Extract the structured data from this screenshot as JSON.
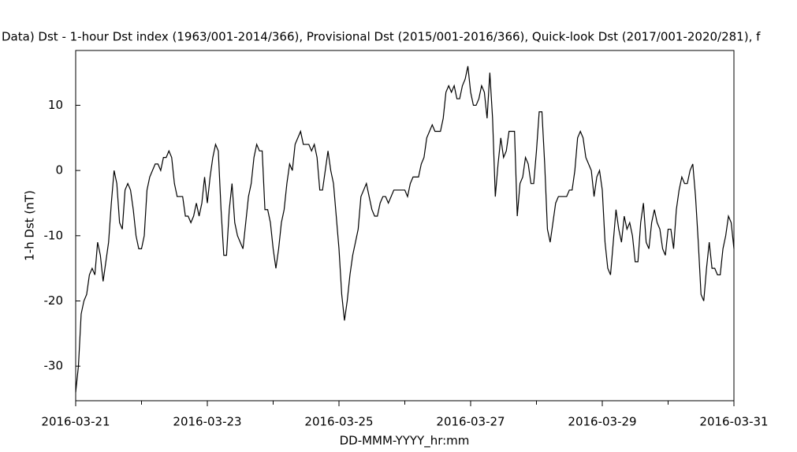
{
  "chart_data": {
    "type": "line",
    "title": "Data)  Dst - 1-hour Dst index (1963/001-2014/366), Provisional Dst (2015/001-2016/366), Quick-look Dst (2017/001-2020/281), f",
    "x_label": "DD-MMM-YYYY_hr:mm",
    "y_label": "1-h Dst (nT)",
    "x": [
      0,
      1,
      2,
      3,
      4,
      5,
      6,
      7,
      8,
      9,
      10,
      11,
      12,
      13,
      14,
      15,
      16,
      17,
      18,
      19,
      20,
      21,
      22,
      23,
      24,
      25,
      26,
      27,
      28,
      29,
      30,
      31,
      32,
      33,
      34,
      35,
      36,
      37,
      38,
      39,
      40,
      41,
      42,
      43,
      44,
      45,
      46,
      47,
      48,
      49,
      50,
      51,
      52,
      53,
      54,
      55,
      56,
      57,
      58,
      59,
      60,
      61,
      62,
      63,
      64,
      65,
      66,
      67,
      68,
      69,
      70,
      71,
      72,
      73,
      74,
      75,
      76,
      77,
      78,
      79,
      80,
      81,
      82,
      83,
      84,
      85,
      86,
      87,
      88,
      89,
      90,
      91,
      92,
      93,
      94,
      95,
      96,
      97,
      98,
      99,
      100,
      101,
      102,
      103,
      104,
      105,
      106,
      107,
      108,
      109,
      110,
      111,
      112,
      113,
      114,
      115,
      116,
      117,
      118,
      119,
      120,
      121,
      122,
      123,
      124,
      125,
      126,
      127,
      128,
      129,
      130,
      131,
      132,
      133,
      134,
      135,
      136,
      137,
      138,
      139,
      140,
      141,
      142,
      143,
      144,
      145,
      146,
      147,
      148,
      149,
      150,
      151,
      152,
      153,
      154,
      155,
      156,
      157,
      158,
      159,
      160,
      161,
      162,
      163,
      164,
      165,
      166,
      167,
      168,
      169,
      170,
      171,
      172,
      173,
      174,
      175,
      176,
      177,
      178,
      179,
      180,
      181,
      182,
      183,
      184,
      185,
      186,
      187,
      188,
      189,
      190,
      191,
      192,
      193,
      194,
      195,
      196,
      197,
      198,
      199,
      200,
      201,
      202,
      203,
      204,
      205,
      206,
      207,
      208,
      209,
      210,
      211,
      212,
      213,
      214,
      215,
      216,
      217,
      218,
      219,
      220,
      221,
      222,
      223,
      224,
      225,
      226,
      227,
      228,
      229,
      230,
      231,
      232,
      233,
      234,
      235,
      236,
      237,
      238,
      239,
      240
    ],
    "series": [
      {
        "name": "1-h Dst",
        "color": "#000000",
        "values": [
          -34,
          -30,
          -22,
          -20,
          -19,
          -16,
          -15,
          -16,
          -11,
          -13,
          -17,
          -14,
          -11,
          -5,
          0,
          -2,
          -8,
          -9,
          -3,
          -2,
          -3,
          -6,
          -10,
          -12,
          -12,
          -10,
          -3,
          -1,
          0,
          1,
          1,
          0,
          2,
          2,
          3,
          2,
          -2,
          -4,
          -4,
          -4,
          -7,
          -7,
          -8,
          -7,
          -5,
          -7,
          -5,
          -1,
          -5,
          -1,
          2,
          4,
          3,
          -6,
          -13,
          -13,
          -6,
          -2,
          -8,
          -10,
          -11,
          -12,
          -8,
          -4,
          -2,
          2,
          4,
          3,
          3,
          -6,
          -6,
          -8,
          -12,
          -15,
          -12,
          -8,
          -6,
          -2,
          1,
          0,
          4,
          5,
          6,
          4,
          4,
          4,
          3,
          4,
          2,
          -3,
          -3,
          0,
          3,
          0,
          -2,
          -7,
          -12,
          -19,
          -23,
          -20,
          -16,
          -13,
          -11,
          -9,
          -4,
          -3,
          -2,
          -4,
          -6,
          -7,
          -7,
          -5,
          -4,
          -4,
          -5,
          -4,
          -3,
          -3,
          -3,
          -3,
          -3,
          -4,
          -2,
          -1,
          -1,
          -1,
          1,
          2,
          5,
          6,
          7,
          6,
          6,
          6,
          8,
          12,
          13,
          12,
          13,
          11,
          11,
          13,
          14,
          16,
          12,
          10,
          10,
          11,
          13,
          12,
          8,
          15,
          8,
          -4,
          1,
          5,
          2,
          3,
          6,
          6,
          6,
          -7,
          -2,
          -1,
          2,
          1,
          -2,
          -2,
          3,
          9,
          9,
          1,
          -9,
          -11,
          -8,
          -5,
          -4,
          -4,
          -4,
          -4,
          -3,
          -3,
          0,
          5,
          6,
          5,
          2,
          1,
          0,
          -4,
          -1,
          0,
          -3,
          -11,
          -15,
          -16,
          -11,
          -6,
          -9,
          -11,
          -7,
          -9,
          -8,
          -10,
          -14,
          -14,
          -8,
          -5,
          -11,
          -12,
          -8,
          -6,
          -8,
          -9,
          -12,
          -13,
          -9,
          -9,
          -12,
          -6,
          -3,
          -1,
          -2,
          -2,
          0,
          1,
          -4,
          -11,
          -19,
          -20,
          -15,
          -11,
          -15,
          -15,
          -16,
          -16,
          -12,
          -10,
          -7,
          -8,
          -12
        ]
      }
    ],
    "xlim": [
      0,
      240
    ],
    "ylim": [
      -35.3,
      18.4
    ],
    "xticks": [
      {
        "value": 0,
        "label": "2016-03-21"
      },
      {
        "value": 24,
        "label": null
      },
      {
        "value": 48,
        "label": "2016-03-23"
      },
      {
        "value": 72,
        "label": null
      },
      {
        "value": 96,
        "label": "2016-03-25"
      },
      {
        "value": 120,
        "label": null
      },
      {
        "value": 144,
        "label": "2016-03-27"
      },
      {
        "value": 168,
        "label": null
      },
      {
        "value": 192,
        "label": "2016-03-29"
      },
      {
        "value": 216,
        "label": null
      },
      {
        "value": 240,
        "label": "2016-03-31"
      }
    ],
    "yticks": [
      -30,
      -20,
      -10,
      0,
      10
    ]
  }
}
